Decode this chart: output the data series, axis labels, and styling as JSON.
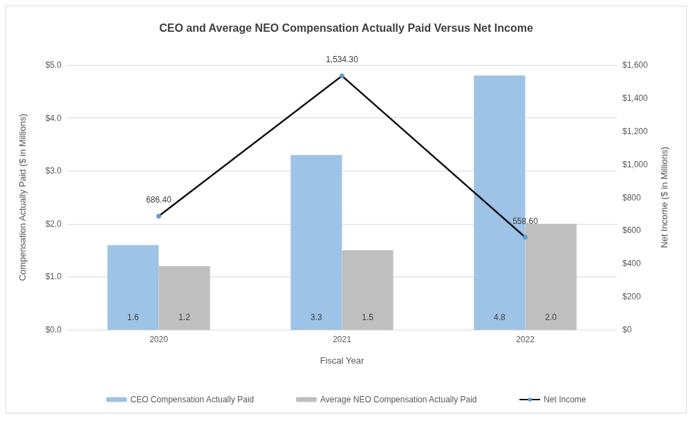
{
  "chart_data": {
    "type": "bar",
    "title": "CEO and Average NEO Compensation Actually Paid Versus Net Income",
    "xlabel": "Fiscal Year",
    "ylabel": "Compensation Actually Paid ($ in Millions)",
    "y2label": "Net Income ($ in Millions)",
    "categories": [
      "2020",
      "2021",
      "2022"
    ],
    "series": [
      {
        "name": "CEO Compensation Actually Paid",
        "color": "#9dc3e6",
        "values": [
          1.6,
          3.3,
          4.8
        ],
        "value_labels": [
          "1.6",
          "3.3",
          "4.8"
        ]
      },
      {
        "name": "Average NEO Compensation Actually Paid",
        "color": "#bfbfbf",
        "values": [
          1.2,
          1.5,
          2.0
        ],
        "value_labels": [
          "1.2",
          "1.5",
          "2.0"
        ]
      },
      {
        "name": "Net Income",
        "type": "line",
        "axis": "y2",
        "color": "#111111",
        "values": [
          686.4,
          1534.3,
          558.6
        ],
        "value_labels": [
          "686.40",
          "1,534.30",
          "558.60"
        ]
      }
    ],
    "ylim": [
      0,
      5
    ],
    "yticks": [
      {
        "value": 0,
        "label": "$0.0"
      },
      {
        "value": 1,
        "label": "$1.0"
      },
      {
        "value": 2,
        "label": "$2.0"
      },
      {
        "value": 3,
        "label": "$3.0"
      },
      {
        "value": 4,
        "label": "$4.0"
      },
      {
        "value": 5,
        "label": "$5.0"
      }
    ],
    "y2lim": [
      0,
      1600
    ],
    "y2ticks": [
      {
        "value": 0,
        "label": "$0"
      },
      {
        "value": 200,
        "label": "$200"
      },
      {
        "value": 400,
        "label": "$400"
      },
      {
        "value": 600,
        "label": "$600"
      },
      {
        "value": 800,
        "label": "$800"
      },
      {
        "value": 1000,
        "label": "$1,000"
      },
      {
        "value": 1200,
        "label": "$1,200"
      },
      {
        "value": 1400,
        "label": "$1,400"
      },
      {
        "value": 1600,
        "label": "$1,600"
      }
    ],
    "grid": "y",
    "legend": "bottom",
    "marker": "circle",
    "line_style": "solid"
  }
}
